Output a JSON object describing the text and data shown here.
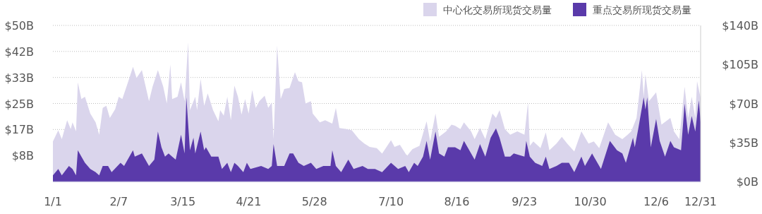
{
  "chart_data": {
    "type": "area",
    "legend": "top right",
    "grid": "y",
    "xlim": [
      "--01-01",
      "--12-31"
    ],
    "xticks": [
      {
        "value": "--01-01",
        "label": "1/1"
      },
      {
        "value": "--02-07",
        "label": "2/7"
      },
      {
        "value": "--03-15",
        "label": "3/15"
      },
      {
        "value": "--04-21",
        "label": "4/21"
      },
      {
        "value": "--05-28",
        "label": "5/28"
      },
      {
        "value": "--07-10",
        "label": "7/10"
      },
      {
        "value": "--08-16",
        "label": "8/16"
      },
      {
        "value": "--09-23",
        "label": "9/23"
      },
      {
        "value": "--10-30",
        "label": "10/30"
      },
      {
        "value": "--12-06",
        "label": "12/6"
      },
      {
        "value": "--12-31",
        "label": "12/31"
      }
    ],
    "ylim": [
      0,
      50
    ],
    "yticks": [
      {
        "value": 8.33,
        "label": "$8B"
      },
      {
        "value": 16.67,
        "label": "$17B"
      },
      {
        "value": 25,
        "label": "$25B"
      },
      {
        "value": 33.33,
        "label": "$33B"
      },
      {
        "value": 41.67,
        "label": "$42B"
      },
      {
        "value": 50,
        "label": "$50B"
      }
    ],
    "y2lim": [
      0,
      140
    ],
    "y2ticks": [
      {
        "value": 0,
        "label": "$0B"
      },
      {
        "value": 35,
        "label": "$35B"
      },
      {
        "value": 70,
        "label": "$70B"
      },
      {
        "value": 105,
        "label": "$105B"
      },
      {
        "value": 140,
        "label": "$140B"
      }
    ],
    "series": [
      {
        "name": "中心化交易所现货交易量",
        "color": "#dad5ec",
        "axis": "y2",
        "x": [
          "--01-01",
          "--01-04",
          "--01-06",
          "--01-09",
          "--01-11",
          "--01-12",
          "--01-14",
          "--01-15",
          "--01-17",
          "--01-19",
          "--01-22",
          "--01-25",
          "--01-27",
          "--01-29",
          "--01-31",
          "--02-02",
          "--02-05",
          "--02-07",
          "--02-09",
          "--02-13",
          "--02-15",
          "--02-17",
          "--02-20",
          "--02-24",
          "--02-26",
          "--03-01",
          "--03-04",
          "--03-06",
          "--03-08",
          "--03-09",
          "--03-12",
          "--03-14",
          "--03-16",
          "--03-18",
          "--03-19",
          "--03-22",
          "--03-23",
          "--03-25",
          "--03-27",
          "--03-29",
          "--04-01",
          "--04-04",
          "--04-05",
          "--04-07",
          "--04-09",
          "--04-11",
          "--04-13",
          "--04-15",
          "--04-17",
          "--04-19",
          "--04-21",
          "--04-23",
          "--04-25",
          "--04-27",
          "--04-30",
          "--05-02",
          "--05-04",
          "--05-05",
          "--05-07",
          "--05-09",
          "--05-11",
          "--05-14",
          "--05-17",
          "--05-19",
          "--05-21",
          "--05-23",
          "--05-26",
          "--05-27",
          "--05-31",
          "--06-03",
          "--06-07",
          "--06-09",
          "--06-11",
          "--06-15",
          "--06-18",
          "--06-22",
          "--06-25",
          "--06-28",
          "--07-02",
          "--07-05",
          "--07-10",
          "--07-12",
          "--07-15",
          "--07-19",
          "--07-22",
          "--07-26",
          "--07-30",
          "--08-01",
          "--08-04",
          "--08-06",
          "--08-10",
          "--08-13",
          "--08-15",
          "--08-18",
          "--08-20",
          "--08-24",
          "--08-26",
          "--08-29",
          "--09-01",
          "--09-05",
          "--09-07",
          "--09-09",
          "--09-12",
          "--09-15",
          "--09-19",
          "--09-23",
          "--09-25",
          "--09-26",
          "--09-28",
          "--10-02",
          "--10-05",
          "--10-07",
          "--10-11",
          "--10-14",
          "--10-17",
          "--10-21",
          "--10-25",
          "--10-29",
          "--11-01",
          "--11-04",
          "--11-09",
          "--11-13",
          "--11-17",
          "--11-20",
          "--11-22",
          "--11-25",
          "--11-28",
          "--11-29",
          "--11-30",
          "--12-02",
          "--12-06",
          "--12-09",
          "--12-14",
          "--12-16",
          "--12-19",
          "--12-22",
          "--12-24",
          "--12-26",
          "--12-28",
          "--12-29",
          "--12-31"
        ],
        "values": [
          36,
          46,
          38,
          55,
          47,
          53,
          45,
          89,
          74,
          76,
          61,
          53,
          42,
          66,
          68,
          57,
          65,
          76,
          74,
          93,
          103,
          93,
          100,
          72,
          85,
          100,
          85,
          70,
          105,
          74,
          76,
          89,
          72,
          125,
          64,
          76,
          64,
          92,
          68,
          79,
          64,
          54,
          64,
          59,
          76,
          55,
          86,
          76,
          60,
          74,
          61,
          82,
          66,
          72,
          77,
          66,
          71,
          38,
          122,
          74,
          83,
          84,
          98,
          90,
          89,
          70,
          72,
          61,
          53,
          55,
          52,
          66,
          48,
          47,
          46,
          38,
          34,
          31,
          30,
          25,
          37,
          31,
          33,
          23,
          29,
          32,
          54,
          36,
          61,
          40,
          45,
          51,
          50,
          47,
          53,
          45,
          38,
          48,
          38,
          61,
          57,
          64,
          47,
          42,
          45,
          42,
          71,
          32,
          36,
          30,
          44,
          28,
          34,
          40,
          34,
          27,
          45,
          34,
          36,
          30,
          53,
          42,
          38,
          42,
          45,
          57,
          100,
          76,
          96,
          72,
          80,
          51,
          57,
          45,
          38,
          85,
          57,
          76,
          57,
          90,
          75
        ]
      },
      {
        "name": "重点交易所现货交易量",
        "color": "#5a3aaa",
        "x": [
          "--01-01",
          "--01-04",
          "--01-06",
          "--01-10",
          "--01-12",
          "--01-14",
          "--01-15",
          "--01-17",
          "--01-19",
          "--01-22",
          "--01-25",
          "--01-27",
          "--01-29",
          "--02-01",
          "--02-03",
          "--02-08",
          "--02-10",
          "--02-15",
          "--02-16",
          "--02-20",
          "--02-24",
          "--02-27",
          "--03-01",
          "--03-03",
          "--03-05",
          "--03-07",
          "--03-09",
          "--03-11",
          "--03-14",
          "--03-16",
          "--03-17",
          "--03-19",
          "--03-21",
          "--03-22",
          "--03-25",
          "--03-27",
          "--03-28",
          "--03-31",
          "--04-04",
          "--04-06",
          "--04-09",
          "--04-11",
          "--04-13",
          "--04-15",
          "--04-18",
          "--04-20",
          "--04-22",
          "--04-28",
          "--05-02",
          "--05-04",
          "--05-05",
          "--05-07",
          "--05-11",
          "--05-14",
          "--05-16",
          "--05-19",
          "--05-22",
          "--05-26",
          "--05-29",
          "--06-02",
          "--06-06",
          "--06-07",
          "--06-09",
          "--06-12",
          "--06-16",
          "--06-19",
          "--06-24",
          "--06-27",
          "--07-01",
          "--07-05",
          "--07-10",
          "--07-14",
          "--07-18",
          "--07-20",
          "--07-23",
          "--07-25",
          "--07-28",
          "--07-30",
          "--08-01",
          "--08-04",
          "--08-06",
          "--08-09",
          "--08-11",
          "--08-15",
          "--08-18",
          "--08-20",
          "--08-23",
          "--08-26",
          "--08-29",
          "--09-01",
          "--09-04",
          "--09-07",
          "--09-09",
          "--09-12",
          "--09-15",
          "--09-17",
          "--09-23",
          "--09-24",
          "--09-26",
          "--09-29",
          "--10-03",
          "--10-05",
          "--10-07",
          "--10-11",
          "--10-14",
          "--10-18",
          "--10-21",
          "--10-25",
          "--10-27",
          "--10-31",
          "--11-01",
          "--11-05",
          "--11-10",
          "--11-14",
          "--11-17",
          "--11-19",
          "--11-23",
          "--11-24",
          "--11-26",
          "--11-29",
          "--11-30",
          "--12-01",
          "--12-03",
          "--12-06",
          "--12-08",
          "--12-11",
          "--12-14",
          "--12-16",
          "--12-20",
          "--12-22",
          "--12-24",
          "--12-26",
          "--12-28",
          "--12-30",
          "--12-31"
        ],
        "values": [
          2,
          4,
          2,
          5,
          4,
          2,
          10,
          8,
          6,
          4,
          3,
          2,
          5,
          5,
          3,
          6,
          5,
          10,
          8,
          9,
          5,
          7,
          16,
          11,
          8,
          9,
          8,
          7,
          15,
          9,
          27,
          10,
          14,
          9,
          16,
          10,
          11,
          8,
          8,
          4,
          6,
          3,
          6,
          5,
          3,
          6,
          4,
          5,
          4,
          5,
          12,
          5,
          5,
          9,
          9,
          6,
          5,
          6,
          4,
          5,
          5,
          10,
          5,
          3,
          7,
          4,
          5,
          4,
          4,
          3,
          6,
          4,
          5,
          3,
          6,
          5,
          8,
          13,
          7,
          16,
          9,
          8,
          11,
          11,
          10,
          13,
          10,
          7,
          12,
          8,
          14,
          17,
          14,
          8,
          8,
          9,
          8,
          13,
          8,
          6,
          5,
          8,
          4,
          5,
          6,
          6,
          3,
          8,
          5,
          9,
          8,
          4,
          13,
          10,
          9,
          6,
          14,
          11,
          17,
          27,
          23,
          27,
          11,
          20,
          13,
          8,
          13,
          11,
          10,
          25,
          15,
          21,
          16,
          26,
          19
        ]
      }
    ]
  }
}
